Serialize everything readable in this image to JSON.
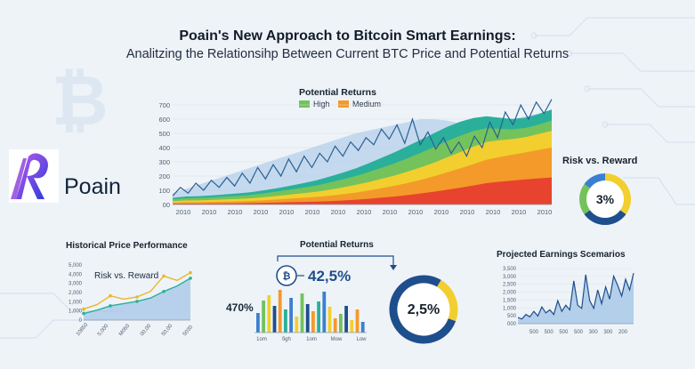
{
  "header": {
    "title": "Poain's New Approach to Bitcoin Smart Earnings:",
    "subtitle": "Analitzing the Relationsihp Between Current BTC Price and Potential Returns"
  },
  "brand": {
    "name": "Poain",
    "accent_colors": [
      "#2a3bd8",
      "#8a3ad8",
      "#c05cf0"
    ]
  },
  "colors": {
    "navy": "#1f4e8c",
    "blue": "#3b7fd0",
    "light_blue": "#a9c8e8",
    "teal": "#2ab09a",
    "green": "#74c25c",
    "yellow": "#f2cf2e",
    "orange": "#f39a2a",
    "red": "#e8432e",
    "gold": "#e9b72a"
  },
  "chart_data": [
    {
      "id": "main",
      "type": "area",
      "title": "Potential Returns",
      "legend": [
        "High",
        "Medium"
      ],
      "legend_colors": [
        "#74c25c",
        "#f39a2a"
      ],
      "y_ticks": [
        "700",
        "600",
        "500",
        "400",
        "300",
        "200",
        "100",
        "00"
      ],
      "ylim": [
        0,
        750
      ],
      "x_ticks": [
        "2010",
        "2010",
        "2010",
        "2010",
        "2010",
        "2010",
        "2010",
        "2010",
        "2010",
        "2010",
        "2010",
        "2010",
        "2010",
        "2010",
        "2010"
      ],
      "series": [
        {
          "name": "Red",
          "color": "#e8432e",
          "values": [
            5,
            6,
            6,
            7,
            8,
            9,
            10,
            12,
            14,
            16,
            18,
            20,
            24,
            28,
            34,
            40,
            48,
            56,
            66,
            78,
            90,
            104,
            118,
            134,
            150,
            160,
            168,
            176,
            184,
            190
          ]
        },
        {
          "name": "Orange",
          "color": "#f39a2a",
          "values": [
            8,
            10,
            10,
            11,
            12,
            13,
            15,
            18,
            21,
            25,
            29,
            33,
            38,
            44,
            50,
            58,
            67,
            76,
            86,
            96,
            108,
            122,
            136,
            150,
            164,
            174,
            182,
            190,
            200,
            210
          ]
        },
        {
          "name": "Yellow",
          "color": "#f2cf2e",
          "values": [
            10,
            12,
            13,
            14,
            16,
            17,
            19,
            22,
            25,
            29,
            33,
            37,
            42,
            48,
            54,
            60,
            66,
            72,
            80,
            88,
            96,
            106,
            114,
            122,
            126,
            118,
            110,
            108,
            112,
            118
          ]
        },
        {
          "name": "Green",
          "color": "#74c25c",
          "values": [
            14,
            16,
            17,
            18,
            20,
            22,
            24,
            27,
            31,
            35,
            39,
            44,
            50,
            56,
            62,
            70,
            78,
            86,
            94,
            102,
            110,
            114,
            116,
            110,
            96,
            80,
            68,
            64,
            66,
            72
          ]
        },
        {
          "name": "Teal",
          "color": "#2ab09a",
          "values": [
            10,
            12,
            13,
            14,
            15,
            17,
            19,
            21,
            24,
            27,
            31,
            36,
            42,
            48,
            54,
            62,
            70,
            78,
            86,
            92,
            98,
            100,
            98,
            92,
            84,
            78,
            74,
            72,
            74,
            78
          ]
        }
      ],
      "price_line": {
        "name": "BTC Price",
        "color": "#2a5f95",
        "values": [
          60,
          120,
          80,
          150,
          100,
          170,
          120,
          190,
          130,
          220,
          150,
          260,
          180,
          280,
          200,
          320,
          230,
          340,
          260,
          360,
          300,
          410,
          340,
          440,
          380,
          470,
          420,
          530,
          460,
          560,
          430,
          600,
          420,
          510,
          390,
          470,
          360,
          440,
          340,
          480,
          400,
          580,
          470,
          650,
          560,
          700,
          600,
          720,
          640,
          740
        ]
      },
      "envelope": {
        "name": "Upper Band",
        "color": "#a9c8e8",
        "values": [
          80,
          110,
          140,
          170,
          200,
          230,
          260,
          290,
          320,
          350,
          380,
          410,
          440,
          470,
          500,
          520,
          540,
          560,
          580,
          600,
          600,
          590,
          570,
          560,
          560,
          580,
          600,
          620,
          640,
          660
        ]
      }
    },
    {
      "id": "risk_reward_right",
      "type": "pie",
      "title": "Risk vs. Reward",
      "center_label": "3%",
      "segments": [
        {
          "name": "Yellow",
          "value": 35,
          "color": "#f2cf2e"
        },
        {
          "name": "Blue",
          "value": 30,
          "color": "#1f4e8c"
        },
        {
          "name": "Green",
          "value": 20,
          "color": "#74c25c"
        },
        {
          "name": "LightBlue",
          "value": 15,
          "color": "#3b7fd0"
        }
      ]
    },
    {
      "id": "historical",
      "type": "line",
      "title": "Historical Price Performance",
      "inset_title": "Risk vs. Reward",
      "y_ticks": [
        "5,000",
        "4,000",
        "3,000",
        "2,000",
        "1,000",
        "1,000",
        "0"
      ],
      "x_ticks": [
        "10850",
        "5,000",
        "M050",
        "00,00",
        "50,00",
        "5030"
      ],
      "series": [
        {
          "name": "Price",
          "color": "#e9b72a",
          "values": [
            1.0,
            1.4,
            2.2,
            1.9,
            2.1,
            2.6,
            4.0,
            3.6,
            4.3
          ]
        },
        {
          "name": "Reward",
          "color": "#2ab09a",
          "values": [
            0.6,
            0.9,
            1.3,
            1.5,
            1.7,
            2.0,
            2.6,
            3.1,
            3.8
          ]
        }
      ],
      "ylim": [
        0,
        5
      ]
    },
    {
      "id": "potential_bars",
      "type": "bar",
      "title": "Potential Returns",
      "headline": "42,5%",
      "side_label": "470%",
      "donut_label": "2,5%",
      "x_ticks": [
        "1om",
        "figh",
        "1om",
        "Mow",
        "Low"
      ],
      "values": [
        2.2,
        3.6,
        4.2,
        3.0,
        4.8,
        2.6,
        3.9,
        1.8,
        4.4,
        3.2,
        2.4,
        3.5,
        4.6,
        2.9,
        1.6,
        2.1,
        3.0,
        1.4,
        2.6,
        1.2
      ],
      "bar_colors": [
        "#3b7fd0",
        "#74c25c",
        "#f2cf2e",
        "#1f4e8c",
        "#f39a2a",
        "#2ab09a",
        "#3b7fd0",
        "#f2cf2e",
        "#74c25c",
        "#1f4e8c",
        "#f39a2a",
        "#2ab09a",
        "#3b7fd0",
        "#f2cf2e",
        "#f39a2a",
        "#74c25c",
        "#1f4e8c",
        "#f2cf2e",
        "#f39a2a",
        "#3b7fd0"
      ],
      "donut_segments": [
        {
          "name": "Blue",
          "value": 78,
          "color": "#1f4e8c"
        },
        {
          "name": "Yellow",
          "value": 22,
          "color": "#f2cf2e"
        }
      ]
    },
    {
      "id": "projected",
      "type": "area",
      "title": "Projected Earnings Scemarios",
      "y_ticks": [
        "3,500",
        "3,000",
        "2,500",
        "2,000",
        "1,500",
        "1,000",
        "500",
        "000"
      ],
      "x_ticks": [
        "500",
        "500",
        "500",
        "500",
        "300",
        "300",
        "200"
      ],
      "ylim": [
        0,
        3600
      ],
      "values": [
        400,
        300,
        600,
        450,
        800,
        500,
        1100,
        700,
        900,
        600,
        1500,
        800,
        1200,
        900,
        2800,
        1200,
        1000,
        3200,
        1500,
        1000,
        2200,
        1300,
        2400,
        1600,
        3100,
        2500,
        1800,
        2900,
        2200,
        3300
      ]
    }
  ]
}
